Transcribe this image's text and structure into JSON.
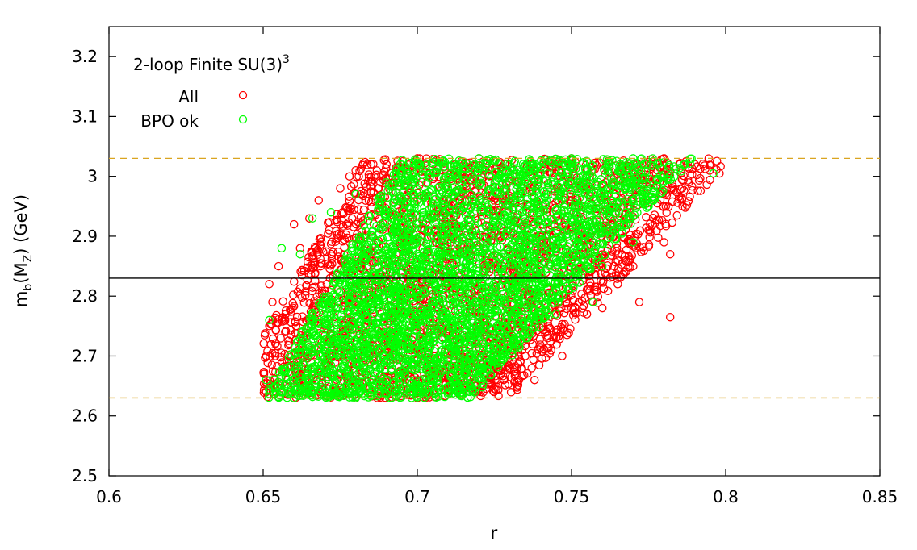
{
  "chart_data": {
    "type": "scatter",
    "title": "2-loop Finite SU(3)",
    "title_superscript": "3",
    "xlabel": "r",
    "ylabel_main": "m",
    "ylabel_sub_b": "b",
    "ylabel_paren_open": "(M",
    "ylabel_sub_z": "Z",
    "ylabel_tail": ") (GeV)",
    "xlim": [
      0.6,
      0.85
    ],
    "ylim": [
      2.5,
      3.25
    ],
    "x_ticks": [
      0.6,
      0.65,
      0.7,
      0.75,
      0.8,
      0.85
    ],
    "x_tick_labels": [
      "0.6",
      "0.65",
      "0.7",
      "0.75",
      "0.8",
      "0.85"
    ],
    "y_ticks": [
      2.5,
      2.6,
      2.7,
      2.8,
      2.9,
      3.0,
      3.1,
      3.2
    ],
    "y_tick_labels": [
      "2.5",
      "2.6",
      "2.7",
      "2.8",
      "2.9",
      "3",
      "3.1",
      "3.2"
    ],
    "grid": false,
    "legend_position": "top-left",
    "reference_lines": [
      {
        "y": 3.03,
        "style": "dashed",
        "color": "#DAA520"
      },
      {
        "y": 2.83,
        "style": "solid",
        "color": "#000000"
      },
      {
        "y": 2.63,
        "style": "dashed",
        "color": "#DAA520"
      }
    ],
    "series": [
      {
        "name": "All",
        "color": "#FF0000",
        "marker": "open-circle",
        "region": {
          "xmin": 0.65,
          "xmax": 0.8,
          "ymin": 2.63,
          "ymax": 3.03
        },
        "points": [
          [
            0.652,
            2.82
          ],
          [
            0.655,
            2.85
          ],
          [
            0.66,
            2.92
          ],
          [
            0.662,
            2.88
          ],
          [
            0.665,
            2.93
          ],
          [
            0.668,
            2.96
          ],
          [
            0.675,
            2.98
          ],
          [
            0.678,
            3.0
          ],
          [
            0.68,
            3.01
          ],
          [
            0.685,
            3.02
          ],
          [
            0.69,
            3.02
          ],
          [
            0.7,
            3.03
          ],
          [
            0.72,
            3.03
          ],
          [
            0.75,
            3.03
          ],
          [
            0.78,
            3.03
          ],
          [
            0.785,
            3.02
          ],
          [
            0.79,
            3.02
          ],
          [
            0.798,
            3.005
          ],
          [
            0.786,
            2.95
          ],
          [
            0.782,
            2.87
          ],
          [
            0.78,
            2.89
          ],
          [
            0.775,
            2.91
          ],
          [
            0.77,
            2.85
          ],
          [
            0.765,
            2.82
          ],
          [
            0.772,
            2.79
          ],
          [
            0.782,
            2.765
          ],
          [
            0.76,
            2.78
          ],
          [
            0.755,
            2.77
          ],
          [
            0.745,
            2.73
          ],
          [
            0.735,
            2.7
          ],
          [
            0.73,
            2.68
          ],
          [
            0.72,
            2.66
          ],
          [
            0.71,
            2.64
          ],
          [
            0.7,
            2.63
          ],
          [
            0.68,
            2.63
          ],
          [
            0.66,
            2.63
          ],
          [
            0.651,
            2.64
          ],
          [
            0.651,
            2.7
          ],
          [
            0.652,
            2.75
          ],
          [
            0.653,
            2.79
          ],
          [
            0.747,
            2.7
          ],
          [
            0.742,
            2.74
          ],
          [
            0.738,
            2.66
          ],
          [
            0.728,
            2.66
          ],
          [
            0.717,
            2.65
          ]
        ]
      },
      {
        "name": "BPO ok",
        "color": "#00FF00",
        "marker": "open-circle",
        "region": {
          "xmin": 0.65,
          "xmax": 0.797,
          "ymin": 2.63,
          "ymax": 3.03
        },
        "points": [
          [
            0.652,
            2.76
          ],
          [
            0.656,
            2.88
          ],
          [
            0.662,
            2.87
          ],
          [
            0.666,
            2.93
          ],
          [
            0.672,
            2.94
          ],
          [
            0.68,
            2.97
          ],
          [
            0.69,
            2.99
          ],
          [
            0.7,
            3.01
          ],
          [
            0.72,
            3.03
          ],
          [
            0.75,
            3.03
          ],
          [
            0.77,
            3.03
          ],
          [
            0.796,
            3.005
          ],
          [
            0.78,
            3.0
          ],
          [
            0.775,
            2.95
          ],
          [
            0.77,
            2.89
          ],
          [
            0.76,
            2.85
          ],
          [
            0.757,
            2.79
          ],
          [
            0.745,
            2.77
          ],
          [
            0.735,
            2.73
          ],
          [
            0.725,
            2.69
          ],
          [
            0.715,
            2.66
          ],
          [
            0.7,
            2.64
          ],
          [
            0.68,
            2.63
          ],
          [
            0.66,
            2.63
          ],
          [
            0.651,
            2.66
          ]
        ]
      }
    ]
  }
}
